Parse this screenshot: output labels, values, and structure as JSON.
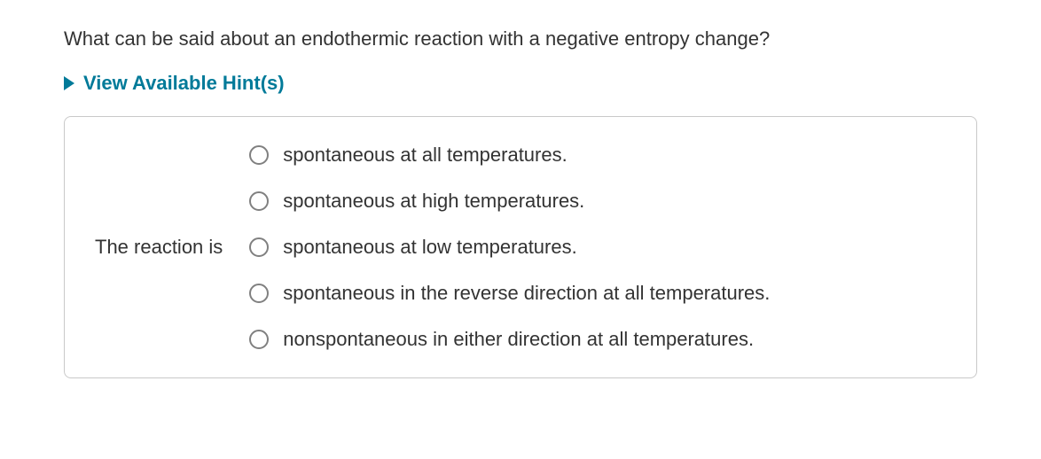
{
  "question": "What can be said about an endothermic reaction with a negative entropy change?",
  "hints_toggle_label": "View Available Hint(s)",
  "answer": {
    "stem": "The reaction is",
    "options": [
      "spontaneous at all temperatures.",
      "spontaneous at high temperatures.",
      "spontaneous at low temperatures.",
      "spontaneous in the reverse direction at all temperatures.",
      "nonspontaneous in either direction at all temperatures."
    ]
  },
  "colors": {
    "hint_color": "#007a99",
    "text_color": "#333333",
    "border_color": "#c9c9c9",
    "radio_border": "#808080",
    "background": "#ffffff"
  },
  "typography": {
    "base_font_size": 22,
    "hint_font_weight": 700
  }
}
